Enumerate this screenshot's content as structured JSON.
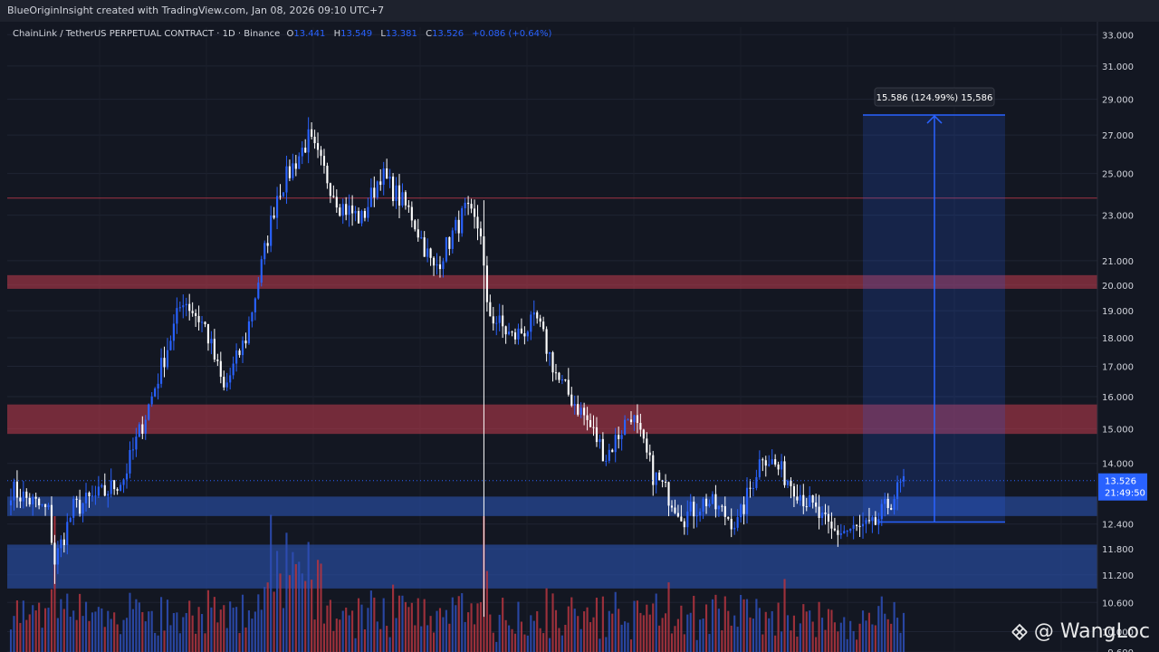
{
  "header": {
    "creator_line": "BlueOriginInsight created with TradingView.com, Jan 08, 2026 09:10 UTC+7"
  },
  "legend": {
    "symbol": "ChainLink / TetherUS PERPETUAL CONTRACT · 1D · Binance",
    "o_label": "O",
    "o_value": "13.441",
    "h_label": "H",
    "h_value": "13.549",
    "l_label": "L",
    "l_value": "13.381",
    "c_label": "C",
    "c_value": "13.526",
    "change": "+0.086 (+0.64%)"
  },
  "price_axis": {
    "ticks": [
      "33.000",
      "31.000",
      "29.000",
      "27.000",
      "25.000",
      "23.000",
      "21.000",
      "20.000",
      "19.000",
      "18.000",
      "17.000",
      "16.000",
      "15.000",
      "14.000",
      "12.400",
      "11.800",
      "11.200",
      "10.600",
      "10.000",
      "9.600"
    ],
    "last_price": "13.526",
    "countdown": "21:49:50"
  },
  "measure": {
    "label": "15.586 (124.99%) 15,586",
    "from": 12.45,
    "to": 28.1
  },
  "watermark": {
    "text": "@ WangLoc",
    "icon": "binance-diamond-icon"
  },
  "colors": {
    "background": "#131722",
    "up": "#2962ff",
    "down": "#ffffff",
    "resistance_zone": "#c43c4e",
    "support_zone": "#2a4fa8",
    "volume_up": "#2e4fb8",
    "volume_down": "#b5353f"
  },
  "chart_data": {
    "type": "candlestick",
    "scale": "log",
    "ylim": [
      9.6,
      33.5
    ],
    "zones": [
      {
        "kind": "resistance",
        "from": 19.85,
        "to": 20.4
      },
      {
        "kind": "resistance",
        "from": 14.85,
        "to": 15.75
      },
      {
        "kind": "support",
        "from": 12.6,
        "to": 13.1
      },
      {
        "kind": "support",
        "from": 10.9,
        "to": 11.9
      }
    ],
    "lines": [
      {
        "price": 23.8
      }
    ],
    "waypoints": [
      [
        0,
        13.3
      ],
      [
        12,
        12.7
      ],
      [
        14,
        11.5
      ],
      [
        20,
        12.8
      ],
      [
        30,
        13.2
      ],
      [
        36,
        13.6
      ],
      [
        45,
        16.0
      ],
      [
        55,
        19.5
      ],
      [
        62,
        18.4
      ],
      [
        68,
        16.2
      ],
      [
        75,
        18.0
      ],
      [
        85,
        24.0
      ],
      [
        95,
        26.8
      ],
      [
        105,
        23.5
      ],
      [
        112,
        22.8
      ],
      [
        118,
        25.0
      ],
      [
        128,
        23.0
      ],
      [
        135,
        20.6
      ],
      [
        145,
        23.2
      ],
      [
        150,
        22.3
      ],
      [
        152,
        19.0
      ],
      [
        160,
        18.0
      ],
      [
        168,
        18.6
      ],
      [
        175,
        16.5
      ],
      [
        183,
        15.4
      ],
      [
        190,
        14.2
      ],
      [
        198,
        15.5
      ],
      [
        205,
        13.7
      ],
      [
        215,
        12.6
      ],
      [
        222,
        13.0
      ],
      [
        232,
        12.4
      ],
      [
        240,
        14.3
      ],
      [
        250,
        13.4
      ],
      [
        262,
        12.2
      ],
      [
        275,
        12.3
      ],
      [
        285,
        13.5
      ]
    ],
    "spikes": [
      {
        "index": 14,
        "low": 11.0
      },
      {
        "index": 151,
        "high": 23.7,
        "low": 10.3
      }
    ]
  }
}
